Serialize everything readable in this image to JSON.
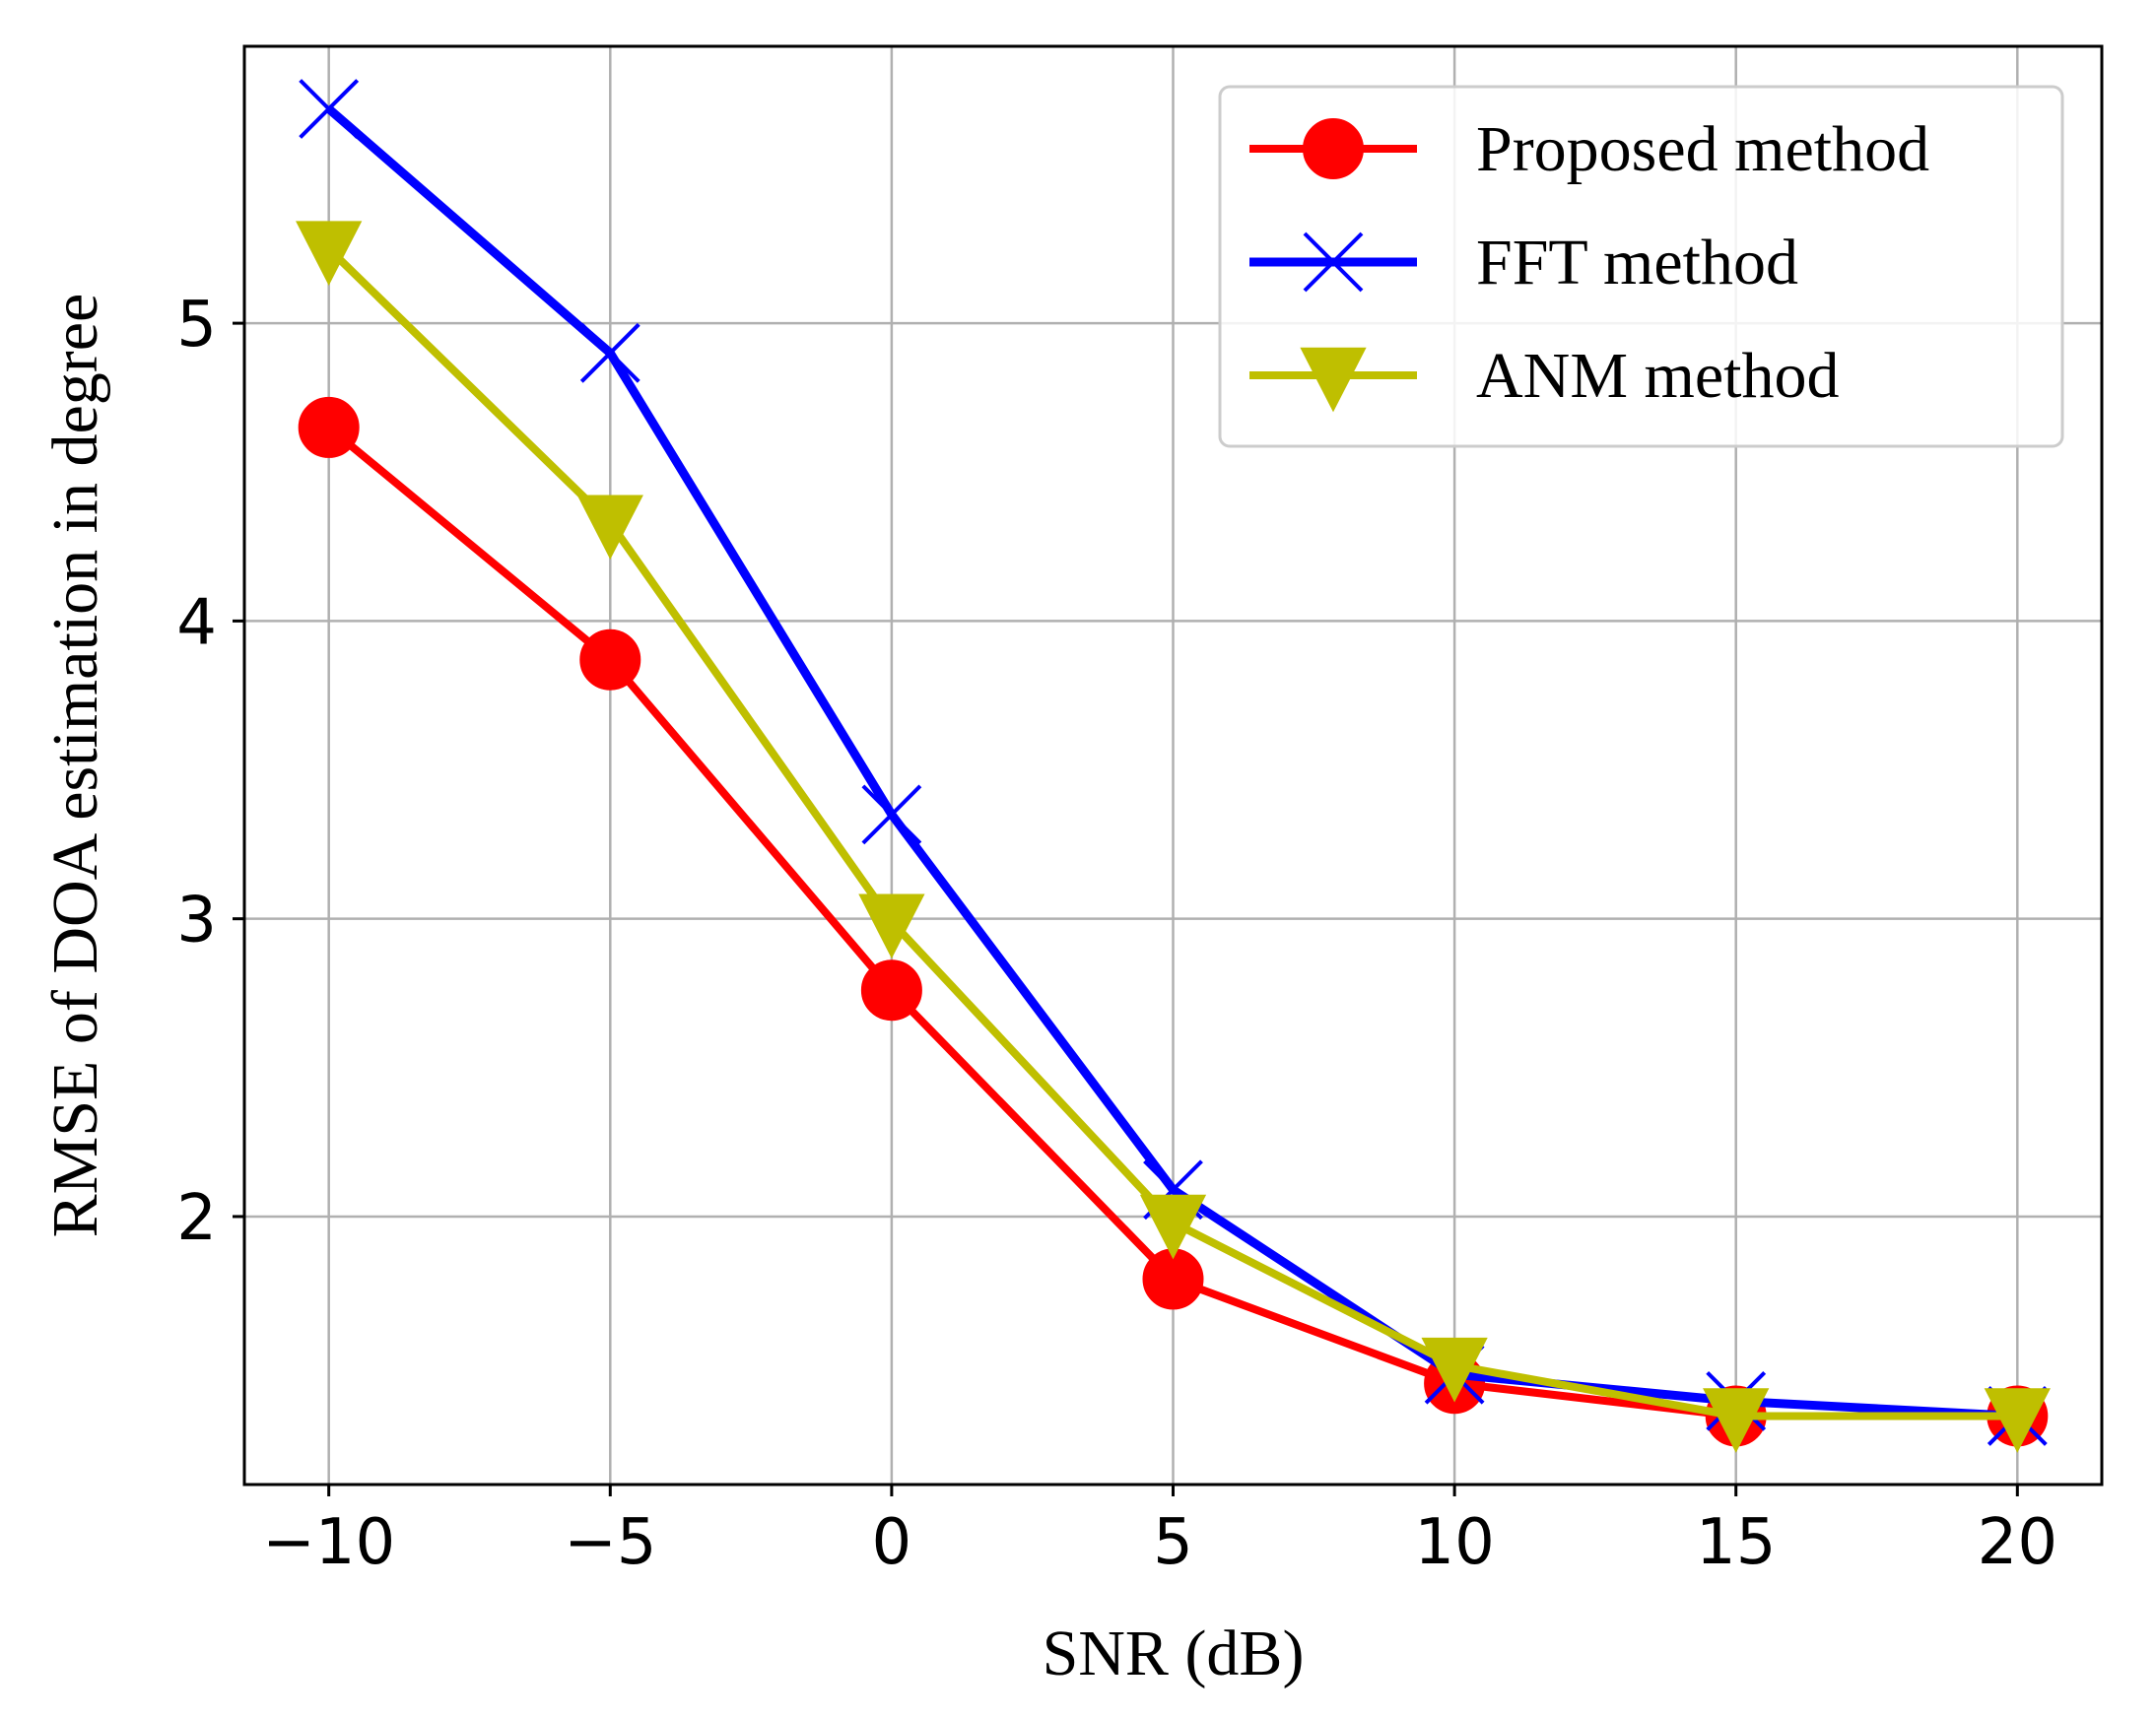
{
  "chart_data": {
    "type": "line",
    "title": "",
    "xlabel": "SNR (dB)",
    "ylabel": "RMSE of DOA estimation in degree",
    "x": [
      -10,
      -5,
      0,
      5,
      10,
      15,
      20
    ],
    "x_tick_labels": [
      "−10",
      "−5",
      "0",
      "5",
      "10",
      "15",
      "20"
    ],
    "y_ticks": [
      2,
      3,
      4,
      5
    ],
    "y_tick_labels": [
      "2",
      "3",
      "4",
      "5"
    ],
    "xlim": [
      -11.5,
      21.5
    ],
    "ylim": [
      1.1,
      5.93
    ],
    "grid": true,
    "legend_position": "top-right",
    "series": [
      {
        "name": "Proposed method",
        "color": "#ff0000",
        "marker": "circle",
        "values": [
          4.65,
          3.87,
          2.76,
          1.79,
          1.44,
          1.33,
          1.33
        ]
      },
      {
        "name": "FFT method",
        "color": "#0000ff",
        "marker": "x",
        "values": [
          5.72,
          4.9,
          3.35,
          2.09,
          1.47,
          1.38,
          1.33
        ]
      },
      {
        "name": "ANM method",
        "color": "#bfbf00",
        "marker": "triangle-down",
        "values": [
          5.25,
          4.33,
          2.99,
          1.98,
          1.5,
          1.33,
          1.33
        ]
      }
    ]
  }
}
